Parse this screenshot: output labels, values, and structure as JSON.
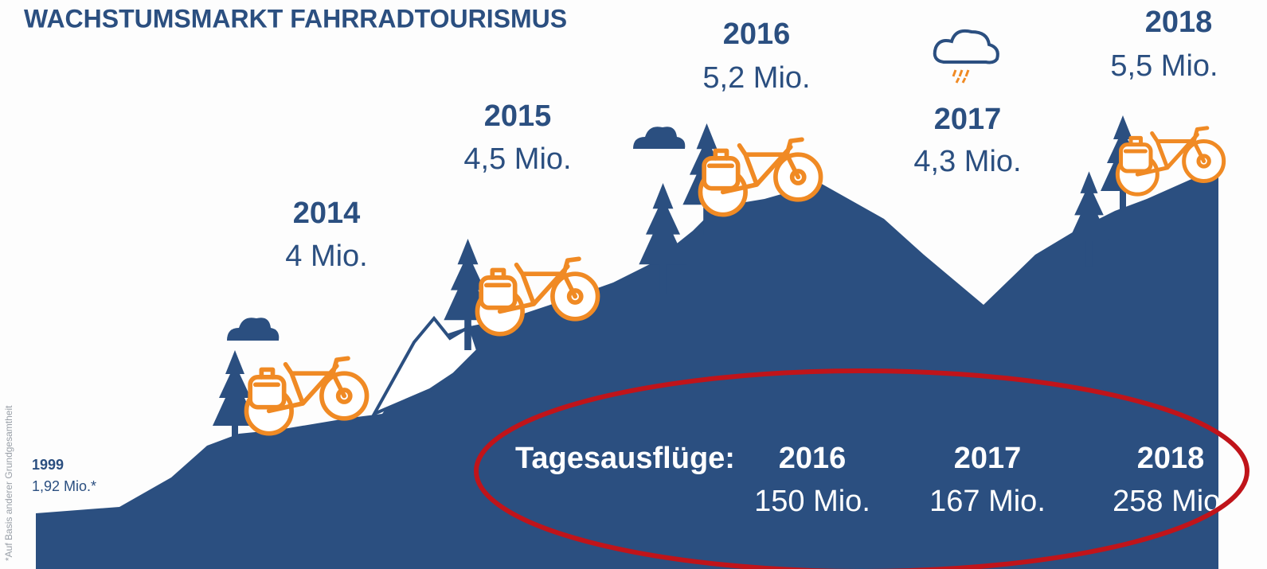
{
  "title": "WACHSTUMSMARKT FAHRRADTOURISMUS",
  "milestones": [
    {
      "year": "1999",
      "value": "1,92 Mio.*"
    },
    {
      "year": "2014",
      "value": "4 Mio."
    },
    {
      "year": "2015",
      "value": "4,5 Mio."
    },
    {
      "year": "2016",
      "value": "5,2 Mio."
    },
    {
      "year": "2017",
      "value": "4,3 Mio."
    },
    {
      "year": "2018",
      "value": "5,5 Mio."
    }
  ],
  "day_trips": {
    "label": "Tagesausflüge:",
    "entries": [
      {
        "year": "2016",
        "value": "150 Mio."
      },
      {
        "year": "2017",
        "value": "167 Mio."
      },
      {
        "year": "2018",
        "value": "258 Mio."
      }
    ]
  },
  "footnote": "*Auf Basis anderer Grundgesamtheit"
}
